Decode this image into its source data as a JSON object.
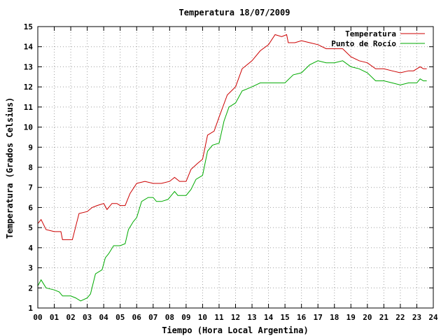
{
  "chart_data": {
    "type": "line",
    "title": "Temperatura 18/07/2009",
    "xlabel": "Tiempo (Hora Local Argentina)",
    "ylabel": "Temperatura (Grados Celsius)",
    "xlim": [
      0,
      24
    ],
    "ylim": [
      1,
      15
    ],
    "x_ticks": [
      0,
      1,
      2,
      3,
      4,
      5,
      6,
      7,
      8,
      9,
      10,
      11,
      12,
      13,
      14,
      15,
      16,
      17,
      18,
      19,
      20,
      21,
      22,
      23,
      24
    ],
    "x_tick_labels": [
      "00",
      "01",
      "02",
      "03",
      "04",
      "05",
      "06",
      "07",
      "08",
      "09",
      "10",
      "11",
      "12",
      "13",
      "14",
      "15",
      "16",
      "17",
      "18",
      "19",
      "20",
      "21",
      "22",
      "23",
      "24"
    ],
    "y_ticks": [
      1,
      2,
      3,
      4,
      5,
      6,
      7,
      8,
      9,
      10,
      11,
      12,
      13,
      14,
      15
    ],
    "grid": true,
    "legend_position": "top-right",
    "series": [
      {
        "name": "Temperatura",
        "color": "#cc0000",
        "points": [
          [
            0.0,
            5.2
          ],
          [
            0.2,
            5.4
          ],
          [
            0.5,
            4.9
          ],
          [
            1.0,
            4.8
          ],
          [
            1.4,
            4.8
          ],
          [
            1.5,
            4.4
          ],
          [
            2.1,
            4.4
          ],
          [
            2.5,
            5.7
          ],
          [
            3.0,
            5.8
          ],
          [
            3.3,
            6.0
          ],
          [
            3.6,
            6.1
          ],
          [
            4.0,
            6.2
          ],
          [
            4.2,
            5.9
          ],
          [
            4.5,
            6.2
          ],
          [
            4.8,
            6.2
          ],
          [
            5.0,
            6.1
          ],
          [
            5.3,
            6.1
          ],
          [
            5.6,
            6.7
          ],
          [
            6.0,
            7.2
          ],
          [
            6.5,
            7.3
          ],
          [
            7.0,
            7.2
          ],
          [
            7.5,
            7.2
          ],
          [
            8.0,
            7.3
          ],
          [
            8.3,
            7.5
          ],
          [
            8.6,
            7.3
          ],
          [
            9.0,
            7.3
          ],
          [
            9.3,
            7.9
          ],
          [
            9.7,
            8.2
          ],
          [
            10.0,
            8.4
          ],
          [
            10.3,
            9.6
          ],
          [
            10.7,
            9.8
          ],
          [
            11.0,
            10.5
          ],
          [
            11.5,
            11.6
          ],
          [
            12.0,
            12.0
          ],
          [
            12.4,
            12.9
          ],
          [
            13.0,
            13.3
          ],
          [
            13.5,
            13.8
          ],
          [
            14.0,
            14.1
          ],
          [
            14.4,
            14.6
          ],
          [
            14.8,
            14.5
          ],
          [
            15.1,
            14.6
          ],
          [
            15.2,
            14.2
          ],
          [
            15.6,
            14.2
          ],
          [
            16.0,
            14.3
          ],
          [
            16.5,
            14.2
          ],
          [
            17.0,
            14.1
          ],
          [
            17.5,
            13.9
          ],
          [
            18.0,
            13.9
          ],
          [
            18.5,
            13.9
          ],
          [
            19.0,
            13.5
          ],
          [
            19.5,
            13.3
          ],
          [
            20.0,
            13.2
          ],
          [
            20.5,
            12.9
          ],
          [
            21.0,
            12.9
          ],
          [
            21.5,
            12.8
          ],
          [
            22.0,
            12.7
          ],
          [
            22.5,
            12.8
          ],
          [
            22.8,
            12.8
          ],
          [
            23.0,
            12.9
          ],
          [
            23.2,
            13.0
          ],
          [
            23.4,
            12.9
          ],
          [
            23.6,
            12.9
          ]
        ]
      },
      {
        "name": "Punto de Rocío",
        "color": "#00aa00",
        "points": [
          [
            0.0,
            2.1
          ],
          [
            0.2,
            2.4
          ],
          [
            0.5,
            2.0
          ],
          [
            1.0,
            1.9
          ],
          [
            1.3,
            1.8
          ],
          [
            1.5,
            1.6
          ],
          [
            2.0,
            1.6
          ],
          [
            2.3,
            1.5
          ],
          [
            2.6,
            1.35
          ],
          [
            3.0,
            1.5
          ],
          [
            3.2,
            1.7
          ],
          [
            3.5,
            2.7
          ],
          [
            3.9,
            2.9
          ],
          [
            4.1,
            3.5
          ],
          [
            4.3,
            3.7
          ],
          [
            4.6,
            4.1
          ],
          [
            5.0,
            4.1
          ],
          [
            5.3,
            4.2
          ],
          [
            5.5,
            4.9
          ],
          [
            5.8,
            5.3
          ],
          [
            6.0,
            5.5
          ],
          [
            6.3,
            6.3
          ],
          [
            6.7,
            6.5
          ],
          [
            7.0,
            6.5
          ],
          [
            7.2,
            6.3
          ],
          [
            7.5,
            6.3
          ],
          [
            7.9,
            6.4
          ],
          [
            8.3,
            6.8
          ],
          [
            8.5,
            6.6
          ],
          [
            9.0,
            6.6
          ],
          [
            9.3,
            6.9
          ],
          [
            9.6,
            7.4
          ],
          [
            10.0,
            7.6
          ],
          [
            10.3,
            8.8
          ],
          [
            10.6,
            9.1
          ],
          [
            11.0,
            9.2
          ],
          [
            11.3,
            10.3
          ],
          [
            11.6,
            11.0
          ],
          [
            12.0,
            11.2
          ],
          [
            12.4,
            11.8
          ],
          [
            13.0,
            12.0
          ],
          [
            13.5,
            12.2
          ],
          [
            14.0,
            12.2
          ],
          [
            14.5,
            12.2
          ],
          [
            15.0,
            12.2
          ],
          [
            15.5,
            12.6
          ],
          [
            16.0,
            12.7
          ],
          [
            16.5,
            13.1
          ],
          [
            17.0,
            13.3
          ],
          [
            17.5,
            13.2
          ],
          [
            18.0,
            13.2
          ],
          [
            18.5,
            13.3
          ],
          [
            19.0,
            13.0
          ],
          [
            19.5,
            12.9
          ],
          [
            20.0,
            12.7
          ],
          [
            20.5,
            12.3
          ],
          [
            21.0,
            12.3
          ],
          [
            21.5,
            12.2
          ],
          [
            22.0,
            12.1
          ],
          [
            22.5,
            12.2
          ],
          [
            23.0,
            12.2
          ],
          [
            23.2,
            12.4
          ],
          [
            23.4,
            12.3
          ],
          [
            23.6,
            12.3
          ]
        ]
      }
    ]
  }
}
